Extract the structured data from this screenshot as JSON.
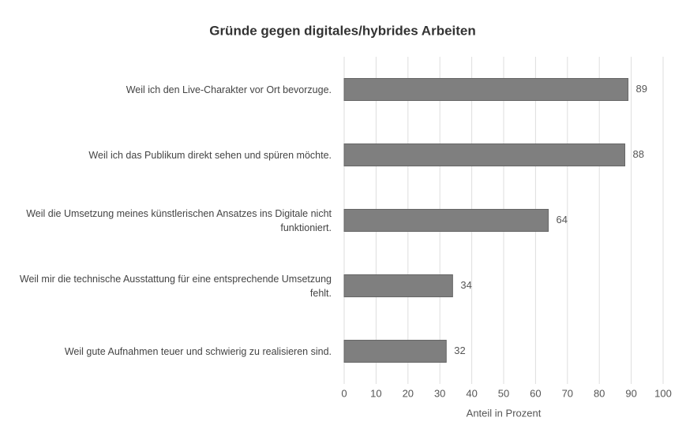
{
  "chart_data": {
    "type": "bar",
    "orientation": "horizontal",
    "title": "Gründe gegen digitales/hybrides Arbeiten",
    "categories": [
      "Weil ich den Live-Charakter vor Ort bevorzuge.",
      "Weil ich das Publikum direkt sehen und spüren möchte.",
      "Weil die Umsetzung meines künstlerischen Ansatzes ins Digitale nicht funktioniert.",
      "Weil mir die technische Ausstattung für eine entsprechende Umsetzung fehlt.",
      "Weil gute Aufnahmen teuer und schwierig zu realisieren sind."
    ],
    "values": [
      89,
      88,
      64,
      34,
      32
    ],
    "color": "#7f7f7f",
    "xlabel": "Anteil in Prozent",
    "xlim": [
      0,
      100
    ],
    "xticks": [
      0,
      10,
      20,
      30,
      40,
      50,
      60,
      70,
      80,
      90,
      100
    ],
    "grid": true
  }
}
